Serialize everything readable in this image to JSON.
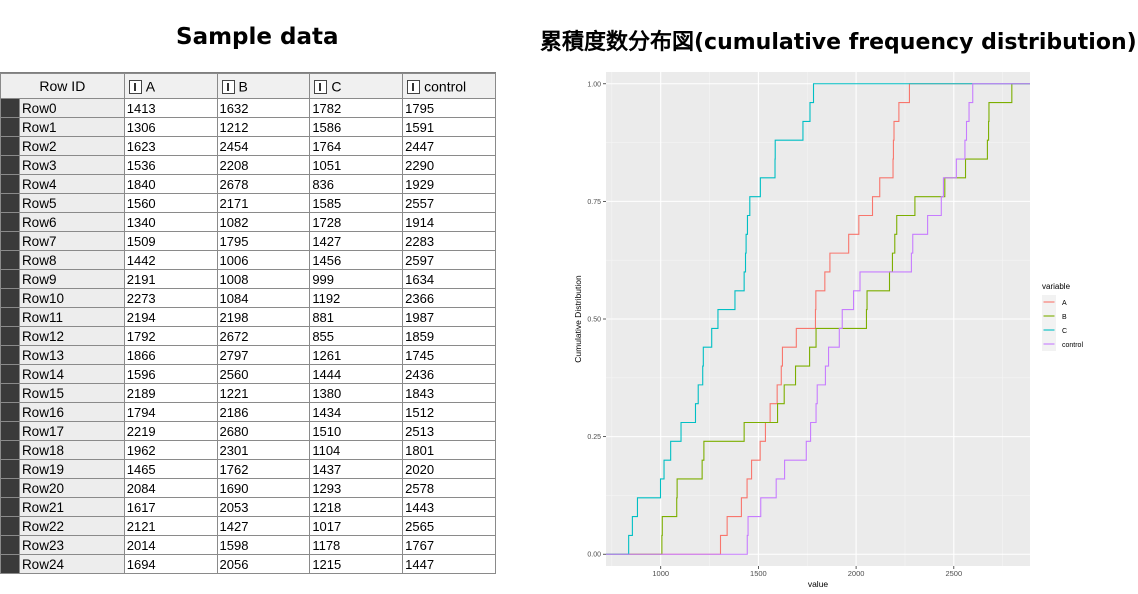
{
  "headings": {
    "left": "Sample data",
    "right": "累積度数分布図(cumulative frequency distribution)"
  },
  "table": {
    "columns": [
      "Row ID",
      "A",
      "B",
      "C",
      "control"
    ],
    "rows": [
      [
        "Row0",
        "1413",
        "1632",
        "1782",
        "1795"
      ],
      [
        "Row1",
        "1306",
        "1212",
        "1586",
        "1591"
      ],
      [
        "Row2",
        "1623",
        "2454",
        "1764",
        "2447"
      ],
      [
        "Row3",
        "1536",
        "2208",
        "1051",
        "2290"
      ],
      [
        "Row4",
        "1840",
        "2678",
        "836",
        "1929"
      ],
      [
        "Row5",
        "1560",
        "2171",
        "1585",
        "2557"
      ],
      [
        "Row6",
        "1340",
        "1082",
        "1728",
        "1914"
      ],
      [
        "Row7",
        "1509",
        "1795",
        "1427",
        "2283"
      ],
      [
        "Row8",
        "1442",
        "1006",
        "1456",
        "2597"
      ],
      [
        "Row9",
        "2191",
        "1008",
        "999",
        "1634"
      ],
      [
        "Row10",
        "2273",
        "1084",
        "1192",
        "2366"
      ],
      [
        "Row11",
        "2194",
        "2198",
        "881",
        "1987"
      ],
      [
        "Row12",
        "1792",
        "2672",
        "855",
        "1859"
      ],
      [
        "Row13",
        "1866",
        "2797",
        "1261",
        "1745"
      ],
      [
        "Row14",
        "1596",
        "2560",
        "1444",
        "2436"
      ],
      [
        "Row15",
        "2189",
        "1221",
        "1380",
        "1843"
      ],
      [
        "Row16",
        "1794",
        "2186",
        "1434",
        "1512"
      ],
      [
        "Row17",
        "2219",
        "2680",
        "1510",
        "2513"
      ],
      [
        "Row18",
        "1962",
        "2301",
        "1104",
        "1801"
      ],
      [
        "Row19",
        "1465",
        "1762",
        "1437",
        "2020"
      ],
      [
        "Row20",
        "2084",
        "1690",
        "1293",
        "2578"
      ],
      [
        "Row21",
        "1617",
        "2053",
        "1218",
        "1443"
      ],
      [
        "Row22",
        "2121",
        "1427",
        "1017",
        "2565"
      ],
      [
        "Row23",
        "2014",
        "1598",
        "1178",
        "1767"
      ],
      [
        "Row24",
        "1694",
        "2056",
        "1215",
        "1447"
      ]
    ]
  },
  "chart_data": {
    "type": "line",
    "subtype": "ecdf-step",
    "title": "",
    "xlabel": "value",
    "ylabel": "Cumulative Distribution",
    "xlim": [
      720,
      2890
    ],
    "ylim": [
      -0.025,
      1.025
    ],
    "xticks": [
      1000,
      1500,
      2000,
      2500
    ],
    "xtick_labels": [
      "1000",
      "1500",
      "2000",
      "2500"
    ],
    "yticks": [
      0,
      0.25,
      0.5,
      0.75,
      1
    ],
    "ytick_labels": [
      "0.00",
      "0.25",
      "0.50",
      "0.75",
      "1.00"
    ],
    "grid": true,
    "legend_title": "variable",
    "legend_position": "right",
    "series": [
      {
        "name": "A",
        "color": "#F8766D",
        "values": [
          1413,
          1306,
          1623,
          1536,
          1840,
          1560,
          1340,
          1509,
          1442,
          2191,
          2273,
          2194,
          1792,
          1866,
          1596,
          2189,
          1794,
          2219,
          1962,
          1465,
          2084,
          1617,
          2121,
          2014,
          1694
        ]
      },
      {
        "name": "B",
        "color": "#7CAE00",
        "values": [
          1632,
          1212,
          2454,
          2208,
          2678,
          2171,
          1082,
          1795,
          1006,
          1008,
          1084,
          2198,
          2672,
          2797,
          2560,
          1221,
          2186,
          2680,
          2301,
          1762,
          1690,
          2053,
          1427,
          1598,
          2056
        ]
      },
      {
        "name": "C",
        "color": "#00BFC4",
        "values": [
          1782,
          1586,
          1764,
          1051,
          836,
          1585,
          1728,
          1427,
          1456,
          999,
          1192,
          881,
          855,
          1261,
          1444,
          1380,
          1434,
          1510,
          1104,
          1437,
          1293,
          1218,
          1017,
          1178,
          1215
        ]
      },
      {
        "name": "control",
        "color": "#C77CFF",
        "values": [
          1795,
          1591,
          2447,
          2290,
          1929,
          2557,
          1914,
          2283,
          2597,
          1634,
          2366,
          1987,
          1859,
          1745,
          2436,
          1843,
          1512,
          2513,
          1801,
          2020,
          2578,
          1443,
          2565,
          1767,
          1447
        ]
      }
    ]
  }
}
